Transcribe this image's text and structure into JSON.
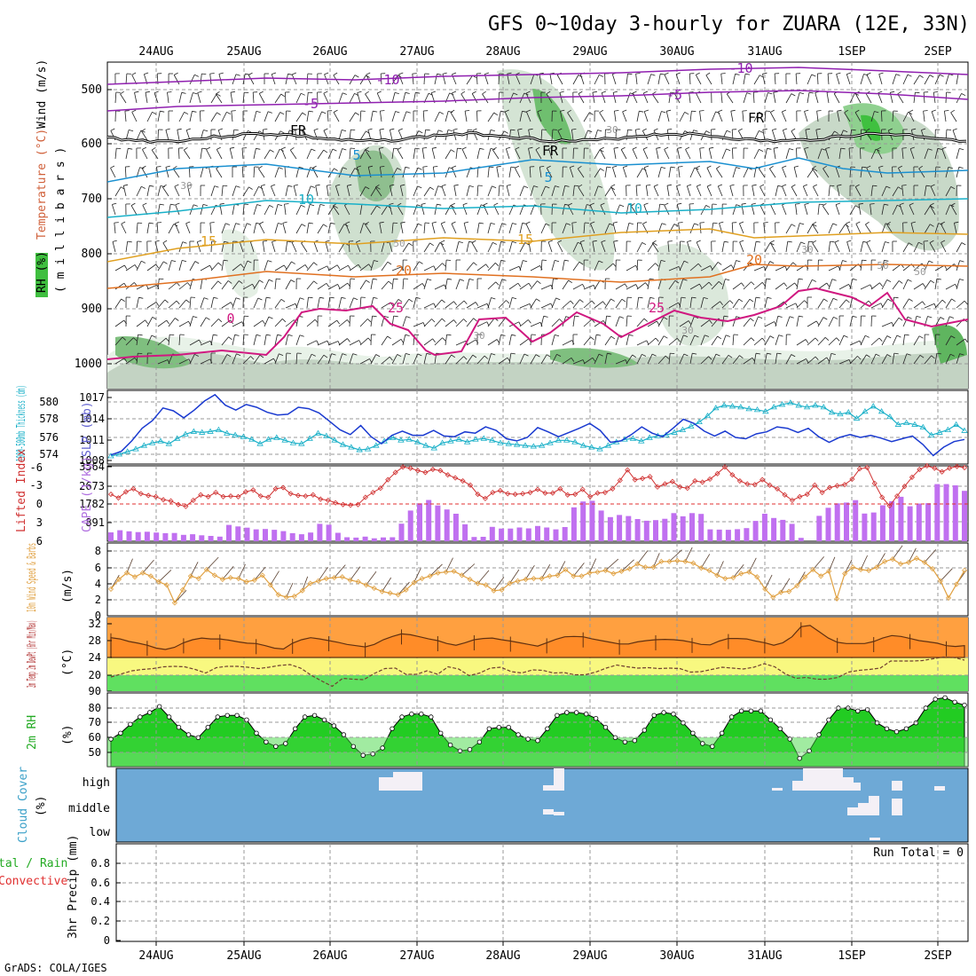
{
  "title": "GFS 0~10day 3-hourly for ZUARA (12E, 33N)",
  "credit": "GrADS: COLA/IGES",
  "dates": [
    "24AUG",
    "25AUG",
    "26AUG",
    "27AUG",
    "28AUG",
    "29AUG",
    "30AUG",
    "31AUG",
    "1SEP",
    "2SEP"
  ],
  "panels": {
    "upper": {
      "labels": [
        "Wind (m/s)",
        "Temperature (°C)",
        "RH (%)",
        "( m i l l i b a r s )"
      ],
      "pressure_ticks": [
        "500",
        "600",
        "700",
        "800",
        "900",
        "1000"
      ],
      "isotherm_labels": [
        "-10",
        "-10",
        "-5",
        "-5",
        "FR",
        "FR",
        "FR",
        "5",
        "5",
        "10",
        "10",
        "15",
        "15",
        "20",
        "20",
        "25",
        "25",
        "0"
      ],
      "rh_labels": [
        "30",
        "50",
        "30",
        "30",
        "50",
        "30",
        "30",
        "50"
      ]
    },
    "slp": {
      "left_label": "1000-500mb Thickness (dm)",
      "right_label": "SLP (mb)",
      "thickness_ticks": [
        "580",
        "578",
        "576",
        "574"
      ],
      "slp_ticks": [
        "1017",
        "1014",
        "1011",
        "1008"
      ]
    },
    "cape": {
      "left_label": "Lifted Index",
      "right_label": "CAPE (J/kg)",
      "li_ticks": [
        "-6",
        "-3",
        "0",
        "3",
        "6"
      ],
      "cape_ticks": [
        "3564",
        "2673",
        "1782",
        "891"
      ]
    },
    "wind10": {
      "label": "10m Wind Speed & Barbs",
      "unit": "(m/s)",
      "ticks": [
        "8",
        "6",
        "4",
        "2",
        "0"
      ]
    },
    "temp2m": {
      "label": "2m Temp 2m DewPt (6hr Min/Max)",
      "unit": "(°C)",
      "ticks": [
        "32",
        "28",
        "24",
        "20",
        "90"
      ]
    },
    "rh2m": {
      "label": "2m RH",
      "unit": "(%)",
      "ticks": [
        "80",
        "70",
        "60",
        "50"
      ]
    },
    "cloud": {
      "label": "Cloud Cover",
      "unit": "(%)",
      "ticks": [
        "high",
        "middle",
        "low"
      ]
    },
    "precip": {
      "label": "3hr Precip (mm)",
      "side_label_1": "tal / Rain",
      "side_label_2": "Convective",
      "run_total": "Run Total = 0",
      "ticks": [
        "0.8",
        "0.6",
        "0.4",
        "0.2",
        "0"
      ]
    }
  },
  "chart_data": {
    "type": "line",
    "time_axis": [
      "24AUG",
      "25AUG",
      "26AUG",
      "27AUG",
      "28AUG",
      "29AUG",
      "30AUG",
      "31AUG",
      "1SEP",
      "2SEP"
    ],
    "slp_mb": [
      1008.8,
      1009.3,
      1010.8,
      1012.6,
      1013.7,
      1015.5,
      1015.1,
      1014.1,
      1015.2,
      1016.5,
      1017.4,
      1015.9,
      1015.2,
      1016.0,
      1015.6,
      1014.9,
      1014.5,
      1014.6,
      1015.6,
      1015.4,
      1014.8,
      1013.6,
      1012.4,
      1011.7,
      1013.0,
      1011.4,
      1010.4,
      1011.6,
      1012.2,
      1011.6,
      1011.6,
      1012.3,
      1011.5,
      1011.4,
      1012.1,
      1011.9,
      1012.8,
      1012.3,
      1011.1,
      1010.8,
      1011.3,
      1012.7,
      1012.1,
      1011.4,
      1012.0,
      1012.6,
      1013.3,
      1012.3,
      1010.6,
      1010.8,
      1011.7,
      1012.8,
      1011.9,
      1011.4,
      1012.6,
      1013.9,
      1013.3,
      1012.2,
      1011.5,
      1012.2,
      1011.3,
      1011.1,
      1011.8,
      1012.1,
      1012.8,
      1012.6,
      1012.0,
      1012.6,
      1011.4,
      1010.6,
      1011.3,
      1011.7,
      1011.3,
      1011.6,
      1011.2,
      1010.7,
      1011.1,
      1011.5,
      1010.3,
      1008.7,
      1009.9,
      1010.7,
      1011.0
    ],
    "thickness_dm": [
      573.8,
      574.0,
      574.3,
      574.6,
      575.0,
      575.3,
      575.5,
      575.2,
      575.8,
      576.3,
      576.6,
      576.5,
      576.6,
      576.8,
      576.4,
      576.2,
      576.0,
      575.7,
      575.2,
      575.7,
      575.9,
      575.6,
      575.3,
      575.2,
      575.8,
      576.4,
      576.1,
      575.6,
      575.1,
      574.8,
      574.5,
      574.6,
      575.0,
      575.5,
      575.9,
      575.6,
      575.7,
      575.4,
      575.0,
      574.7,
      575.3,
      575.5,
      575.7,
      575.4,
      575.7,
      575.8,
      575.6,
      575.3,
      575.2,
      575.1,
      575.0,
      574.9,
      575.0,
      575.3,
      575.6,
      575.6,
      575.4,
      575.0,
      574.8,
      574.6,
      575.0,
      575.4,
      575.7,
      575.8,
      575.5,
      575.9,
      576.1,
      576.2,
      576.5,
      576.8,
      577.2,
      577.7,
      578.4,
      579.3,
      579.6,
      579.5,
      579.4,
      579.2,
      579.1,
      578.9,
      579.4,
      579.7,
      579.9,
      579.6,
      579.4,
      579.6,
      579.4,
      578.8,
      578.6,
      578.8,
      578.1,
      578.9,
      579.5,
      578.9,
      578.3,
      577.4,
      577.6,
      577.4,
      577.1,
      576.2,
      576.5,
      576.8,
      577.4,
      576.7
    ],
    "lifted_index": [
      -1.6,
      -1.0,
      -2.0,
      -2.5,
      -1.7,
      -1.4,
      -1.2,
      -0.7,
      -0.5,
      0.1,
      0.4,
      -0.6,
      -1.5,
      -1.2,
      -1.9,
      -1.2,
      -1.3,
      -1.2,
      -2.0,
      -2.3,
      -1.3,
      -1.1,
      -2.5,
      -2.7,
      -1.7,
      -1.4,
      -1.3,
      -1.5,
      -0.8,
      -0.6,
      -0.2,
      0.1,
      0.2,
      0.1,
      -1.1,
      -1.9,
      -2.6,
      -4.0,
      -5.2,
      -6.1,
      -5.9,
      -5.5,
      -5.2,
      -5.7,
      -5.5,
      -4.8,
      -4.3,
      -3.8,
      -3.1,
      -1.6,
      -0.9,
      -1.9,
      -2.2,
      -1.7,
      -1.6,
      -1.7,
      -1.9,
      -2.4,
      -1.8,
      -1.8,
      -2.5,
      -1.5,
      -1.6,
      -2.4,
      -1.2,
      -1.8,
      -1.9,
      -2.5,
      -3.9,
      -5.6,
      -4.0,
      -4.2,
      -4.5,
      -2.8,
      -3.3,
      -3.7,
      -2.8,
      -2.6,
      -3.8,
      -3.6,
      -4.1,
      -5.0,
      -6.1,
      -4.8,
      -3.8,
      -3.3,
      -3.2,
      -4.0,
      -3.1,
      -2.5,
      -1.5,
      -0.6,
      -1.2,
      -1.6,
      -3.1,
      -1.9,
      -2.7,
      -3.0,
      -3.2,
      -4.1,
      -5.8,
      -6.0,
      -3.4,
      -1.1,
      0.3,
      -1.3,
      -2.9,
      -4.4,
      -5.7,
      -6.3,
      -5.9,
      -5.3,
      -5.9,
      -6.2,
      -6.0
    ],
    "cape_jkg": [
      420,
      520,
      470,
      430,
      450,
      410,
      380,
      390,
      300,
      330,
      280,
      250,
      220,
      770,
      700,
      640,
      560,
      580,
      540,
      480,
      380,
      330,
      410,
      820,
      780,
      400,
      190,
      170,
      220,
      140,
      180,
      190,
      830,
      1450,
      1790,
      1950,
      1690,
      1500,
      1300,
      800,
      200,
      210,
      680,
      600,
      600,
      650,
      610,
      720,
      650,
      560,
      670,
      1600,
      1880,
      1910,
      1450,
      1140,
      1240,
      1190,
      1050,
      970,
      1000,
      1060,
      1330,
      1180,
      1330,
      1290,
      560,
      550,
      540,
      570,
      620,
      960,
      1300,
      1100,
      1010,
      820,
      160,
      0,
      1200,
      1580,
      1790,
      1830,
      1940,
      1310,
      1360,
      1700,
      1890,
      2100,
      1650,
      1780,
      1800,
      2700,
      2700,
      2640,
      2380
    ],
    "wind10_speed_ms": [
      3.3,
      4.5,
      5.3,
      4.8,
      5.3,
      4.9,
      4.2,
      3.8,
      1.6,
      3.2,
      4.9,
      4.6,
      5.7,
      5.0,
      4.5,
      4.7,
      4.6,
      4.2,
      4.4,
      5.0,
      3.8,
      2.6,
      2.3,
      2.4,
      3.1,
      4.0,
      4.3,
      4.6,
      4.7,
      4.8,
      4.4,
      4.2,
      3.8,
      3.4,
      3.0,
      2.8,
      2.6,
      3.2,
      4.1,
      4.6,
      4.9,
      5.3,
      5.4,
      5.5,
      5.0,
      4.5,
      4.0,
      3.8,
      3.1,
      3.2,
      4.0,
      4.3,
      4.5,
      4.6,
      4.6,
      4.9,
      5.0,
      5.7,
      4.9,
      4.9,
      5.3,
      5.4,
      5.6,
      5.2,
      5.5,
      5.8,
      6.4,
      6.0,
      6.0,
      6.7,
      6.7,
      6.8,
      6.7,
      6.5,
      5.9,
      5.6,
      5.0,
      4.6,
      4.7,
      5.2,
      5.4,
      4.8,
      3.3,
      2.3,
      2.9,
      3.0,
      3.7,
      4.8,
      5.7,
      4.9,
      5.5,
      2.1,
      5.2,
      6.0,
      5.7,
      5.6,
      6.0,
      6.7,
      7.0,
      6.4,
      6.6,
      7.1,
      6.6,
      5.8,
      4.3,
      2.2,
      3.9,
      5.6
    ],
    "temp2m_c": [
      28.7,
      28.4,
      27.8,
      27.4,
      26.9,
      26.2,
      25.9,
      26.4,
      27.5,
      28.2,
      28.6,
      28.4,
      28.4,
      28.1,
      27.7,
      27.4,
      27.3,
      26.8,
      26.2,
      26.0,
      27.4,
      28.2,
      28.7,
      28.4,
      28.0,
      27.6,
      27.1,
      26.8,
      26.5,
      27.1,
      28.2,
      29.0,
      29.6,
      29.4,
      28.9,
      28.4,
      28.0,
      27.3,
      26.9,
      27.5,
      28.2,
      28.5,
      28.6,
      28.2,
      27.9,
      27.5,
      27.1,
      26.7,
      27.5,
      28.3,
      28.9,
      29.0,
      28.9,
      28.4,
      28.0,
      27.6,
      27.2,
      27.2,
      27.7,
      28.0,
      28.2,
      28.3,
      28.2,
      28.0,
      27.6,
      27.1,
      27.0,
      27.9,
      28.5,
      28.5,
      28.4,
      27.9,
      27.5,
      26.9,
      27.5,
      28.9,
      31.3,
      31.6,
      30.1,
      28.6,
      27.6,
      27.3,
      27.3,
      27.3,
      27.8,
      28.6,
      29.2,
      29.0,
      28.5,
      28.0,
      27.7,
      27.4,
      26.8,
      26.6,
      26.8
    ],
    "dewpt2m_c": [
      19.6,
      20.3,
      21.0,
      21.3,
      21.5,
      21.9,
      22.0,
      21.9,
      21.3,
      20.5,
      21.7,
      22.0,
      22.0,
      21.8,
      21.5,
      21.8,
      22.2,
      22.4,
      21.6,
      20.0,
      18.7,
      17.5,
      19.3,
      19.1,
      19.0,
      20.4,
      21.5,
      21.6,
      20.2,
      20.2,
      21.0,
      20.2,
      21.9,
      21.4,
      19.9,
      20.5,
      21.6,
      21.8,
      20.8,
      20.5,
      21.2,
      21.1,
      20.5,
      20.6,
      20.1,
      20.1,
      20.7,
      21.6,
      22.3,
      21.9,
      21.6,
      21.7,
      21.5,
      21.6,
      21.5,
      20.7,
      20.8,
      21.3,
      21.8,
      21.6,
      21.4,
      21.8,
      22.6,
      21.9,
      20.3,
      19.3,
      19.5,
      19.1,
      19.1,
      19.5,
      20.7,
      21.1,
      21.3,
      21.6,
      23.2,
      23.2,
      23.2,
      23.3,
      23.7,
      24.1,
      24.0,
      23.4
    ],
    "rh2m_pct": [
      59,
      63,
      69,
      74,
      77,
      81,
      74,
      67,
      62,
      60,
      67,
      74,
      75,
      75,
      72,
      63,
      57,
      54,
      56,
      66,
      74,
      75,
      72,
      68,
      62,
      54,
      48,
      49,
      53,
      66,
      74,
      76,
      76,
      74,
      63,
      55,
      51,
      52,
      57,
      66,
      67,
      67,
      62,
      59,
      58,
      66,
      75,
      77,
      77,
      76,
      73,
      67,
      60,
      57,
      58,
      65,
      75,
      77,
      76,
      70,
      63,
      56,
      54,
      63,
      74,
      78,
      78,
      78,
      72,
      66,
      59,
      46,
      51,
      62,
      72,
      80,
      80,
      78,
      79,
      70,
      66,
      64,
      66,
      70,
      80,
      86,
      87,
      84,
      82
    ],
    "cloud_cover": {
      "high": "partial",
      "middle": "partial",
      "low": "partial"
    },
    "precip_run_total_mm": 0
  }
}
